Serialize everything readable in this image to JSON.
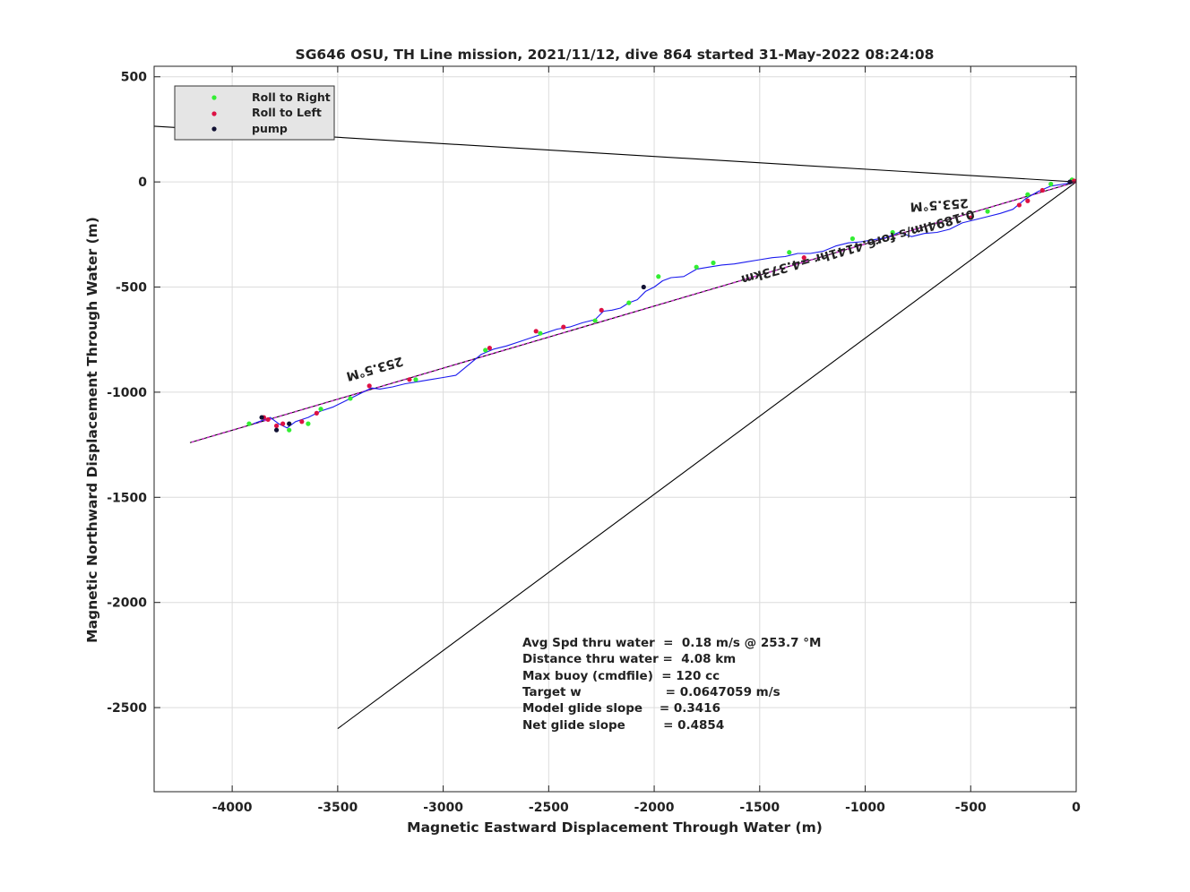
{
  "chart_data": {
    "type": "line",
    "title": "SG646 OSU, TH Line mission, 2021/11/12, dive 864 started 31-May-2022 08:24:08",
    "xlabel": "Magnetic Eastward Displacement Through Water (m)",
    "ylabel": "Magnetic Northward Displacement Through Water (m)",
    "xlim": [
      -4370,
      0
    ],
    "ylim": [
      -2900,
      550
    ],
    "xticks": [
      -4000,
      -3500,
      -3000,
      -2500,
      -2000,
      -1500,
      -1000,
      -500,
      0
    ],
    "yticks": [
      500,
      0,
      -500,
      -1000,
      -1500,
      -2000,
      -2500
    ],
    "grid": true,
    "legend_position": "top-left",
    "legend": [
      {
        "label": "Roll to Right",
        "color": "#33ee33"
      },
      {
        "label": "Roll to Left",
        "color": "#dd1144"
      },
      {
        "label": "pump",
        "color": "#111133"
      }
    ],
    "reference_lines": [
      {
        "color": "#000000",
        "x": [
          0,
          -4370
        ],
        "y": [
          0,
          265
        ]
      },
      {
        "color": "#000000",
        "x": [
          0,
          -4200
        ],
        "y": [
          0,
          -1240
        ]
      },
      {
        "color": "#000000",
        "x": [
          0,
          -3500
        ],
        "y": [
          0,
          -2600
        ]
      },
      {
        "color": "#cc33cc",
        "x": [
          0,
          -4200
        ],
        "y": [
          0,
          -1240
        ]
      }
    ],
    "track": {
      "color": "#1a1aee",
      "x": [
        0,
        -60,
        -120,
        -180,
        -240,
        -300,
        -360,
        -420,
        -480,
        -540,
        -600,
        -660,
        -720,
        -780,
        -840,
        -900,
        -960,
        -1020,
        -1080,
        -1140,
        -1200,
        -1260,
        -1320,
        -1380,
        -1440,
        -1500,
        -1560,
        -1620,
        -1680,
        -1740,
        -1800,
        -1860,
        -1920,
        -1960,
        -2000,
        -2040,
        -2080,
        -2120,
        -2160,
        -2200,
        -2240,
        -2280,
        -2340,
        -2400,
        -2460,
        -2520,
        -2580,
        -2640,
        -2700,
        -2760,
        -2820,
        -2880,
        -2940,
        -3000,
        -3060,
        -3120,
        -3180,
        -3240,
        -3300,
        -3340,
        -3400,
        -3460,
        -3520,
        -3580,
        -3640,
        -3700,
        -3740,
        -3780,
        -3820,
        -3860,
        -3900
      ],
      "y": [
        0,
        -10,
        -20,
        -45,
        -80,
        -130,
        -150,
        -165,
        -180,
        -195,
        -225,
        -240,
        -245,
        -260,
        -240,
        -265,
        -275,
        -285,
        -290,
        -305,
        -330,
        -340,
        -340,
        -355,
        -360,
        -370,
        -380,
        -390,
        -395,
        -405,
        -415,
        -450,
        -455,
        -470,
        -500,
        -520,
        -560,
        -575,
        -600,
        -610,
        -615,
        -655,
        -670,
        -690,
        -700,
        -720,
        -740,
        -760,
        -780,
        -795,
        -820,
        -870,
        -920,
        -930,
        -940,
        -950,
        -960,
        -975,
        -985,
        -980,
        -1010,
        -1040,
        -1070,
        -1090,
        -1120,
        -1140,
        -1170,
        -1150,
        -1120,
        -1135,
        -1150
      ]
    },
    "roll_to_right": {
      "x": [
        -20,
        -120,
        -230,
        -420,
        -870,
        -1060,
        -1360,
        -1720,
        -1800,
        -1980,
        -2120,
        -2280,
        -2540,
        -2800,
        -3130,
        -3440,
        -3580,
        -3640,
        -3730,
        -3920
      ],
      "y": [
        10,
        -10,
        -60,
        -140,
        -240,
        -270,
        -335,
        -385,
        -405,
        -450,
        -575,
        -660,
        -720,
        -800,
        -940,
        -1030,
        -1080,
        -1150,
        -1180,
        -1150
      ]
    },
    "roll_to_left": {
      "x": [
        -10,
        -160,
        -230,
        -270,
        -500,
        -1290,
        -2250,
        -2430,
        -2560,
        -2780,
        -3160,
        -3350,
        -3600,
        -3670,
        -3760,
        -3790,
        -3830,
        -3850
      ],
      "y": [
        5,
        -40,
        -90,
        -110,
        -170,
        -360,
        -610,
        -690,
        -710,
        -790,
        -940,
        -970,
        -1100,
        -1140,
        -1150,
        -1160,
        -1130,
        -1120
      ]
    },
    "pump": {
      "x": [
        -30,
        -2050,
        -3730,
        -3790,
        -3860
      ],
      "y": [
        0,
        -500,
        -1150,
        -1180,
        -1120
      ]
    },
    "annotations": [
      {
        "text": "253.5°M",
        "x": -2050,
        "y": 0,
        "rotation": 176,
        "anchor_x": -650,
        "anchor_y": -90
      },
      {
        "text": "0.1894lm/s for6.4141hr =4.373km",
        "anchor_x": -1040,
        "anchor_y": -290,
        "rotation": 164
      },
      {
        "text": "253.5°M",
        "anchor_x": -3330,
        "anchor_y": -870,
        "rotation": 164
      }
    ],
    "stats": [
      "Avg Spd thru water  =  0.18 m/s @ 253.7 °M",
      "Distance thru water =  4.08 km",
      "Max buoy (cmdfile)  = 120 cc",
      "Target w                    = 0.0647059 m/s",
      "Model glide slope    = 0.3416",
      "Net glide slope         = 0.4854"
    ]
  }
}
